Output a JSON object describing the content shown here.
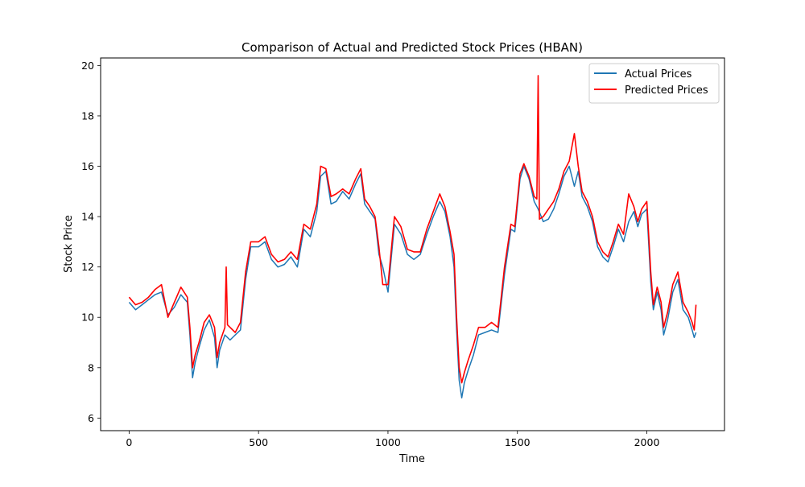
{
  "chart_data": {
    "type": "line",
    "title": "Comparison of Actual and Predicted Stock Prices (HBAN)",
    "xlabel": "Time",
    "ylabel": "Stock Price",
    "xlim": [
      -110,
      2300
    ],
    "ylim": [
      5.5,
      20.3
    ],
    "xticks": [
      0,
      500,
      1000,
      1500,
      2000
    ],
    "yticks": [
      6,
      8,
      10,
      12,
      14,
      16,
      18,
      20
    ],
    "grid": false,
    "legend_position": "top-right",
    "series": [
      {
        "name": "Actual Prices",
        "color": "#1f77b4",
        "x": [
          0,
          25,
          50,
          75,
          100,
          125,
          150,
          175,
          200,
          225,
          235,
          245,
          255,
          270,
          290,
          310,
          330,
          340,
          350,
          370,
          390,
          410,
          430,
          450,
          470,
          500,
          525,
          550,
          575,
          600,
          625,
          650,
          675,
          700,
          725,
          740,
          760,
          780,
          800,
          825,
          850,
          875,
          895,
          910,
          930,
          950,
          965,
          980,
          1000,
          1025,
          1050,
          1075,
          1100,
          1125,
          1150,
          1175,
          1200,
          1220,
          1240,
          1255,
          1265,
          1275,
          1285,
          1295,
          1310,
          1330,
          1350,
          1375,
          1400,
          1425,
          1450,
          1475,
          1490,
          1510,
          1525,
          1545,
          1565,
          1580,
          1600,
          1620,
          1640,
          1660,
          1680,
          1700,
          1720,
          1735,
          1750,
          1770,
          1790,
          1810,
          1830,
          1850,
          1870,
          1890,
          1910,
          1930,
          1950,
          1965,
          1980,
          2000,
          2015,
          2025,
          2040,
          2055,
          2065,
          2080,
          2100,
          2120,
          2140,
          2160,
          2175,
          2183,
          2190
        ],
        "y": [
          10.6,
          10.3,
          10.5,
          10.7,
          10.9,
          11.0,
          10.1,
          10.4,
          10.9,
          10.6,
          9.3,
          7.6,
          8.2,
          8.8,
          9.5,
          9.9,
          9.2,
          8.0,
          8.7,
          9.3,
          9.1,
          9.3,
          9.5,
          11.5,
          12.8,
          12.8,
          13.0,
          12.3,
          12.0,
          12.1,
          12.4,
          12.0,
          13.5,
          13.2,
          14.2,
          15.6,
          15.8,
          14.5,
          14.6,
          15.0,
          14.7,
          15.3,
          15.7,
          14.5,
          14.2,
          13.9,
          12.5,
          12.0,
          11.0,
          13.7,
          13.3,
          12.5,
          12.3,
          12.5,
          13.3,
          14.0,
          14.6,
          14.2,
          13.2,
          12.0,
          9.5,
          7.5,
          6.8,
          7.4,
          7.9,
          8.5,
          9.3,
          9.4,
          9.5,
          9.4,
          11.7,
          13.5,
          13.4,
          15.5,
          16.0,
          15.5,
          14.6,
          14.3,
          13.8,
          13.9,
          14.3,
          14.9,
          15.6,
          16.0,
          15.2,
          15.8,
          14.8,
          14.4,
          13.8,
          12.8,
          12.4,
          12.2,
          12.8,
          13.5,
          13.0,
          13.8,
          14.2,
          13.6,
          14.1,
          14.3,
          11.4,
          10.3,
          11.0,
          10.3,
          9.3,
          9.9,
          11.0,
          11.5,
          10.3,
          10.0,
          9.5,
          9.2,
          9.4
        ]
      },
      {
        "name": "Predicted Prices",
        "color": "#ff0000",
        "x": [
          0,
          25,
          50,
          75,
          100,
          125,
          150,
          175,
          200,
          225,
          235,
          245,
          255,
          270,
          290,
          310,
          330,
          340,
          350,
          370,
          375,
          380,
          390,
          410,
          430,
          450,
          470,
          500,
          525,
          550,
          575,
          600,
          625,
          650,
          675,
          700,
          725,
          740,
          760,
          780,
          800,
          825,
          850,
          875,
          895,
          910,
          930,
          950,
          965,
          980,
          1000,
          1025,
          1050,
          1075,
          1100,
          1125,
          1150,
          1175,
          1200,
          1220,
          1240,
          1255,
          1265,
          1275,
          1285,
          1295,
          1310,
          1330,
          1350,
          1375,
          1400,
          1425,
          1450,
          1475,
          1490,
          1510,
          1525,
          1545,
          1565,
          1575,
          1580,
          1585,
          1600,
          1620,
          1640,
          1660,
          1680,
          1700,
          1720,
          1735,
          1750,
          1770,
          1790,
          1810,
          1830,
          1850,
          1870,
          1890,
          1910,
          1930,
          1950,
          1965,
          1980,
          2000,
          2015,
          2025,
          2040,
          2055,
          2065,
          2080,
          2100,
          2120,
          2140,
          2160,
          2175,
          2183,
          2190
        ],
        "y": [
          10.8,
          10.5,
          10.6,
          10.8,
          11.1,
          11.3,
          10.0,
          10.6,
          11.2,
          10.8,
          9.6,
          8.0,
          8.5,
          9.0,
          9.8,
          10.1,
          9.6,
          8.4,
          9.0,
          9.6,
          12.0,
          9.7,
          9.6,
          9.4,
          9.8,
          11.8,
          13.0,
          13.0,
          13.2,
          12.5,
          12.2,
          12.3,
          12.6,
          12.3,
          13.7,
          13.5,
          14.5,
          16.0,
          15.9,
          14.8,
          14.9,
          15.1,
          14.9,
          15.5,
          15.9,
          14.7,
          14.4,
          14.0,
          12.8,
          11.3,
          11.3,
          14.0,
          13.6,
          12.7,
          12.6,
          12.6,
          13.5,
          14.2,
          14.9,
          14.4,
          13.4,
          12.5,
          10.0,
          8.0,
          7.4,
          7.8,
          8.3,
          8.9,
          9.6,
          9.6,
          9.8,
          9.6,
          12.0,
          13.7,
          13.6,
          15.7,
          16.1,
          15.6,
          14.8,
          14.7,
          19.6,
          13.9,
          14.0,
          14.3,
          14.6,
          15.1,
          15.8,
          16.2,
          17.3,
          16.0,
          15.0,
          14.6,
          14.0,
          13.0,
          12.6,
          12.4,
          13.0,
          13.7,
          13.3,
          14.9,
          14.4,
          13.8,
          14.3,
          14.6,
          11.8,
          10.5,
          11.2,
          10.6,
          9.6,
          10.2,
          11.3,
          11.8,
          10.6,
          10.2,
          9.8,
          9.5,
          10.5
        ]
      }
    ]
  }
}
